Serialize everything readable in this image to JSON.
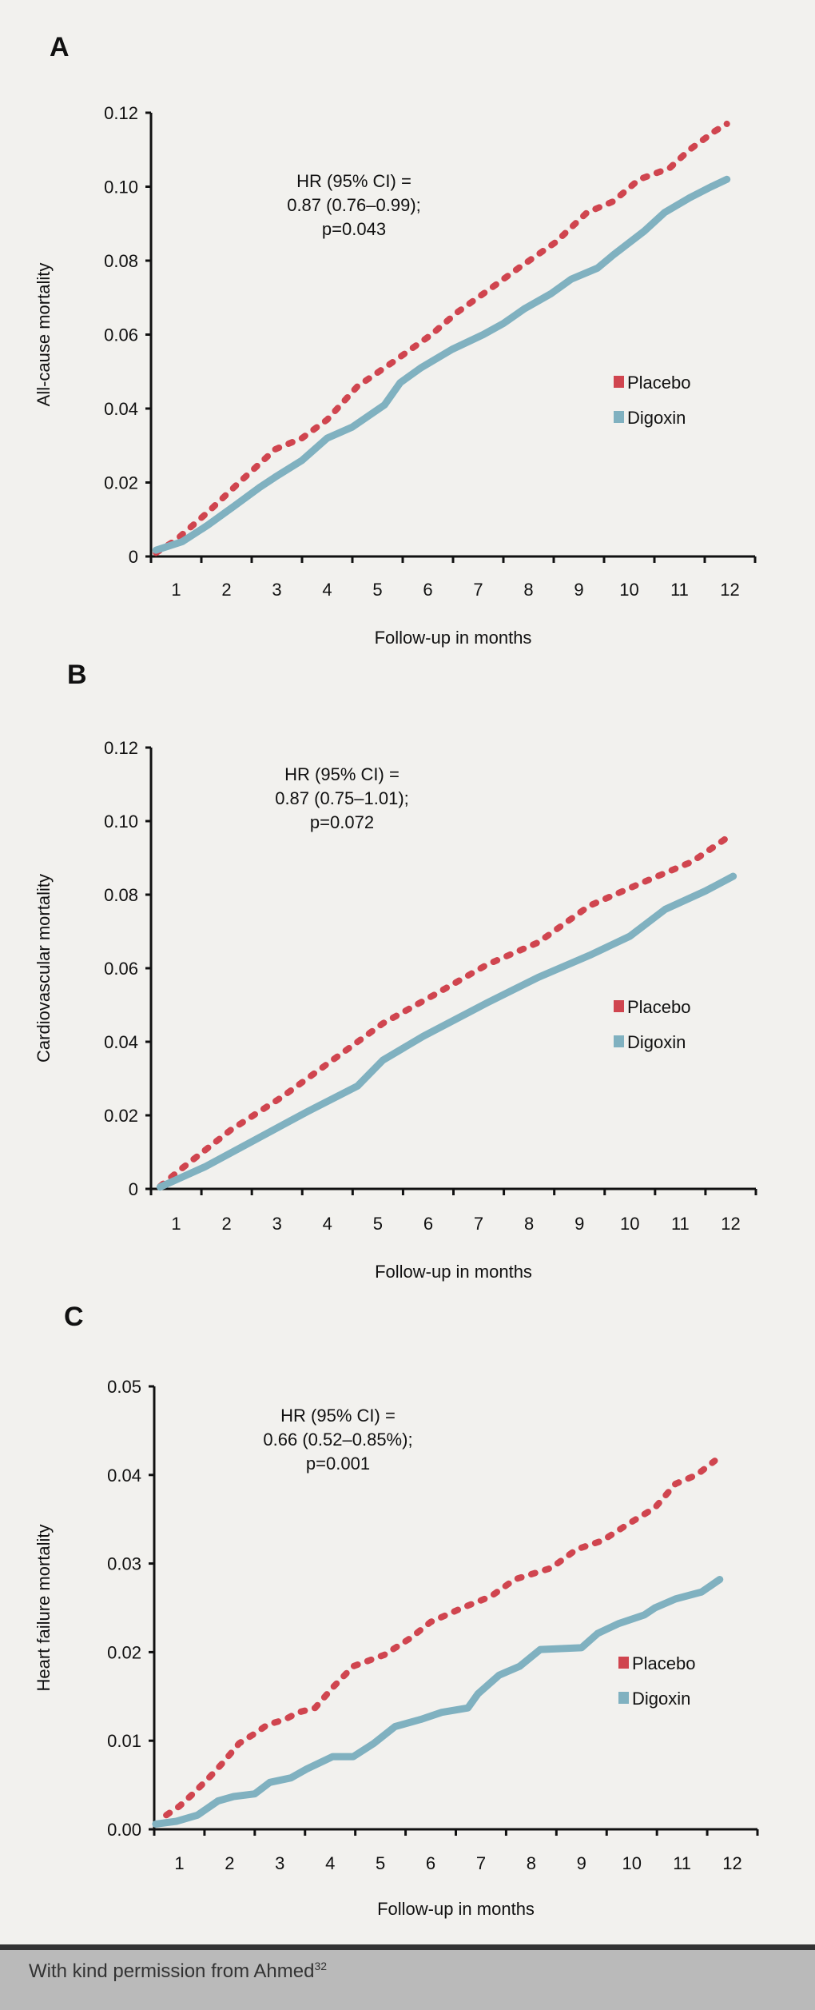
{
  "chart_data": [
    {
      "type": "line",
      "panel_label": "A",
      "ylabel": "All-cause mortality",
      "xlabel": "Follow-up in months",
      "xticks": [
        "1",
        "2",
        "3",
        "4",
        "5",
        "6",
        "7",
        "8",
        "9",
        "10",
        "11",
        "12"
      ],
      "yticks": [
        "0",
        "0.02",
        "0.04",
        "0.06",
        "0.08",
        "0.10",
        "0.12"
      ],
      "ylim": [
        0,
        0.12
      ],
      "xlim": [
        0,
        12
      ],
      "annotation": [
        "HR (95% CI) =",
        "0.87 (0.76–0.99);",
        "p=0.043"
      ],
      "legend_position": "right",
      "series": [
        {
          "name": "Placebo",
          "color": "#d0454f",
          "style": "dotted",
          "x": [
            0.1,
            0.5,
            1.13,
            1.75,
            2.47,
            3,
            3.5,
            4.1,
            4.85,
            5.57,
            6.08,
            6.8,
            7.3,
            8.04,
            8.66,
            9.18,
            9.7,
            10.3,
            10.7,
            11.2,
            11.44
          ],
          "y": [
            0.001,
            0.0045,
            0.012,
            0.02,
            0.029,
            0.032,
            0.037,
            0.046,
            0.053,
            0.06,
            0.066,
            0.073,
            0.078,
            0.085,
            0.093,
            0.096,
            0.102,
            0.105,
            0.11,
            0.115,
            0.117
          ]
        },
        {
          "name": "Digoxin",
          "color": "#80b1c0",
          "style": "solid",
          "x": [
            0.1,
            0.62,
            1.13,
            1.65,
            2.16,
            2.47,
            3,
            3.5,
            4.0,
            4.64,
            4.95,
            5.36,
            5.98,
            6.6,
            7.0,
            7.42,
            7.94,
            8.35,
            8.87,
            9.18,
            9.8,
            10.2,
            10.7,
            11.13,
            11.44
          ],
          "y": [
            0.0017,
            0.004,
            0.0085,
            0.0136,
            0.0187,
            0.0215,
            0.026,
            0.032,
            0.035,
            0.041,
            0.047,
            0.051,
            0.056,
            0.06,
            0.063,
            0.067,
            0.071,
            0.075,
            0.078,
            0.0815,
            0.088,
            0.093,
            0.097,
            0.1,
            0.102
          ]
        }
      ]
    },
    {
      "type": "line",
      "panel_label": "B",
      "ylabel": "Cardiovascular mortality",
      "xlabel": "Follow-up in months",
      "xticks": [
        "1",
        "2",
        "3",
        "4",
        "5",
        "6",
        "7",
        "8",
        "9",
        "10",
        "11",
        "12"
      ],
      "yticks": [
        "0",
        "0.02",
        "0.04",
        "0.06",
        "0.08",
        "0.10",
        "0.12"
      ],
      "ylim": [
        0,
        0.12
      ],
      "xlim": [
        0,
        12
      ],
      "annotation": [
        "HR (95% CI) =",
        "0.87 (0.75–1.01);",
        "p=0.072"
      ],
      "legend_position": "right",
      "series": [
        {
          "name": "Placebo",
          "color": "#d0454f",
          "style": "dotted",
          "x": [
            0.18,
            0.56,
            1.58,
            2.6,
            3.6,
            4.6,
            5.65,
            6.67,
            7.68,
            8.7,
            9.7,
            10.74,
            11.55
          ],
          "y": [
            0.0007,
            0.005,
            0.016,
            0.025,
            0.035,
            0.045,
            0.053,
            0.061,
            0.067,
            0.077,
            0.083,
            0.089,
            0.0966
          ]
        },
        {
          "name": "Digoxin",
          "color": "#80b1c0",
          "style": "solid",
          "x": [
            0.18,
            1.07,
            2.1,
            3.1,
            4.1,
            4.6,
            5.4,
            6.67,
            7.68,
            8.7,
            9.5,
            10.2,
            11.0,
            11.55
          ],
          "y": [
            0.0005,
            0.006,
            0.0136,
            0.021,
            0.028,
            0.035,
            0.0415,
            0.0506,
            0.0575,
            0.0635,
            0.0687,
            0.076,
            0.081,
            0.085
          ]
        }
      ]
    },
    {
      "type": "line",
      "panel_label": "C",
      "ylabel": "Heart failure mortality",
      "xlabel": "Follow-up in months",
      "xticks": [
        "1",
        "2",
        "3",
        "4",
        "5",
        "6",
        "7",
        "8",
        "9",
        "10",
        "11",
        "12"
      ],
      "yticks": [
        "0.00",
        "0.01",
        "0.02",
        "0.03",
        "0.04",
        "0.05"
      ],
      "ylim": [
        0,
        0.05
      ],
      "xlim": [
        0,
        12
      ],
      "annotation": [
        "HR (95% CI) =",
        "0.66 (0.52–0.85%);",
        "p=0.001"
      ],
      "legend_position": "right",
      "series": [
        {
          "name": "Placebo",
          "color": "#d0454f",
          "style": "dotted",
          "x": [
            0.24,
            0.5,
            0.75,
            1.12,
            1.38,
            1.69,
            2.0,
            2.25,
            2.6,
            2.87,
            3.2,
            3.55,
            3.96,
            4.58,
            5.1,
            5.5,
            6.13,
            6.7,
            7.17,
            7.9,
            8.4,
            8.92,
            9.44,
            9.96,
            10.37,
            10.79,
            11.15
          ],
          "y": [
            0.0016,
            0.0026,
            0.0039,
            0.006,
            0.0076,
            0.0097,
            0.0108,
            0.0118,
            0.0124,
            0.0132,
            0.0137,
            0.016,
            0.0184,
            0.0197,
            0.0216,
            0.0234,
            0.025,
            0.0263,
            0.0282,
            0.0295,
            0.0316,
            0.0326,
            0.0345,
            0.0363,
            0.039,
            0.04,
            0.0416
          ]
        },
        {
          "name": "Digoxin",
          "color": "#80b1c0",
          "style": "solid",
          "x": [
            0.03,
            0.44,
            0.86,
            1.27,
            1.58,
            2.0,
            2.3,
            2.72,
            3.03,
            3.55,
            3.96,
            4.37,
            4.79,
            5.3,
            5.72,
            6.24,
            6.44,
            6.86,
            7.27,
            7.68,
            8.5,
            8.82,
            9.23,
            9.75,
            9.96,
            10.37,
            10.89,
            11.25
          ],
          "y": [
            0.0006,
            0.0009,
            0.0016,
            0.0032,
            0.0037,
            0.004,
            0.0053,
            0.0058,
            0.0068,
            0.0082,
            0.0082,
            0.0097,
            0.0116,
            0.0124,
            0.0132,
            0.0137,
            0.0153,
            0.0174,
            0.0184,
            0.0203,
            0.0205,
            0.0221,
            0.0232,
            0.0242,
            0.025,
            0.026,
            0.0268,
            0.0282
          ]
        }
      ]
    }
  ],
  "footer": {
    "text": "With kind permission from Ahmed",
    "superscript": "32"
  }
}
